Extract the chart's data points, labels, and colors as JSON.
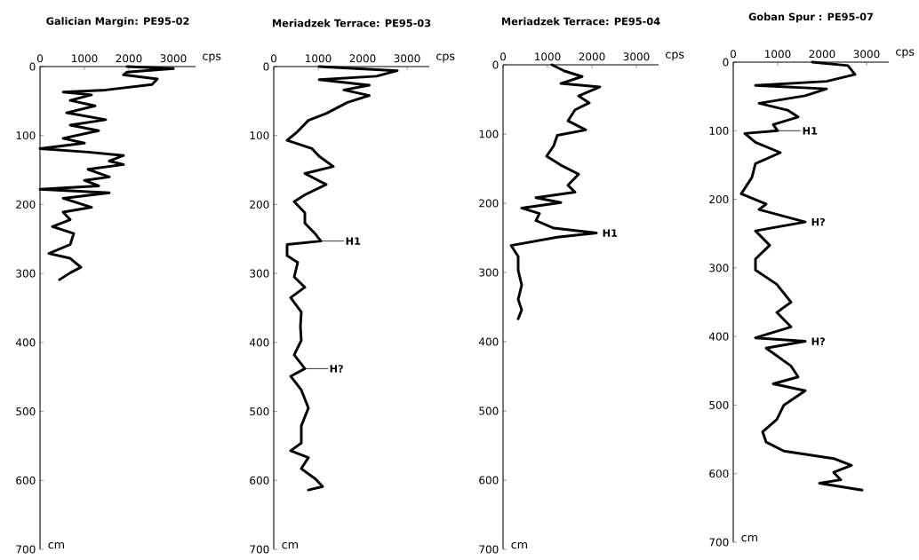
{
  "chart_data": [
    {
      "type": "line",
      "title": "Galician Margin: PE95-02",
      "xlabel": "cps",
      "ylabel": "cm",
      "color": "#000000",
      "xlim": [
        0,
        3500
      ],
      "ylim": [
        700,
        0
      ],
      "xticks": [
        0,
        1000,
        2000,
        3000
      ],
      "yticks": [
        0,
        100,
        200,
        300,
        400,
        500,
        600,
        700
      ],
      "x": [
        1960,
        3000,
        1960,
        1880,
        2640,
        2520,
        1480,
        520,
        1160,
        680,
        1240,
        600,
        1480,
        680,
        1320,
        520,
        1000,
        0,
        1080,
        1880,
        1560,
        1880,
        1080,
        1560,
        1000,
        1320,
        0,
        1560,
        520,
        1160,
        520,
        680,
        280,
        760,
        680,
        200,
        680,
        920,
        680,
        440
      ],
      "values": [
        0,
        3,
        8,
        12,
        18,
        26,
        34,
        37,
        41,
        49,
        57,
        67,
        77,
        85,
        93,
        104,
        111,
        119,
        124,
        129,
        137,
        142,
        149,
        160,
        165,
        173,
        178,
        183,
        191,
        204,
        211,
        222,
        232,
        242,
        258,
        271,
        278,
        291,
        299,
        309
      ]
    },
    {
      "type": "line",
      "title": "Meriadzek Terrace: PE95-03",
      "xlabel": "cps",
      "ylabel": "cm",
      "color": "#000000",
      "xlim": [
        0,
        3500
      ],
      "ylim": [
        700,
        0
      ],
      "xticks": [
        0,
        1000,
        2000,
        3000
      ],
      "yticks": [
        0,
        100,
        200,
        300,
        400,
        500,
        600,
        700
      ],
      "x": [
        1020,
        2780,
        2310,
        1020,
        2150,
        1580,
        2150,
        1660,
        1180,
        780,
        540,
        300,
        860,
        1020,
        1340,
        700,
        1180,
        700,
        460,
        700,
        700,
        940,
        1060,
        300,
        300,
        540,
        460,
        700,
        380,
        620,
        600,
        620,
        460,
        700,
        380,
        620,
        780,
        620,
        620,
        380,
        780,
        620,
        940,
        1100,
        780
      ],
      "values": [
        0,
        6,
        14,
        19,
        27,
        34,
        42,
        52,
        68,
        78,
        94,
        107,
        119,
        130,
        145,
        155,
        171,
        186,
        196,
        212,
        227,
        243,
        253,
        258,
        274,
        284,
        305,
        320,
        335,
        356,
        377,
        397,
        418,
        438,
        449,
        469,
        495,
        521,
        546,
        557,
        567,
        583,
        598,
        609,
        614
      ],
      "annotations": [
        {
          "text": "H1",
          "x": 1060,
          "y": 253
        },
        {
          "text": "H?",
          "x": 700,
          "y": 438
        }
      ]
    },
    {
      "type": "line",
      "title": "Meriadzek Terrace: PE95-04",
      "xlabel": "cps",
      "ylabel": "cm",
      "color": "#000000",
      "xlim": [
        0,
        3500
      ],
      "ylim": [
        700,
        0
      ],
      "xticks": [
        0,
        1000,
        2000,
        3000
      ],
      "yticks": [
        0,
        100,
        200,
        300,
        400,
        500,
        600,
        700
      ],
      "x": [
        1100,
        1380,
        1780,
        1300,
        2180,
        1700,
        1940,
        1620,
        1460,
        1860,
        1220,
        1140,
        980,
        1300,
        1700,
        1460,
        1620,
        740,
        1300,
        420,
        820,
        740,
        1140,
        2100,
        1220,
        180,
        340,
        340,
        420,
        340,
        420,
        340
      ],
      "values": [
        0,
        9,
        17,
        27,
        32,
        45,
        55,
        65,
        81,
        94,
        102,
        117,
        132,
        145,
        158,
        174,
        184,
        192,
        199,
        207,
        215,
        225,
        236,
        243,
        249,
        261,
        277,
        297,
        318,
        339,
        354,
        367
      ],
      "annotations": [
        {
          "text": "H1",
          "x": 2100,
          "y": 243
        }
      ]
    },
    {
      "type": "line",
      "title": "Goban Spur : PE95-07",
      "xlabel": "cps",
      "ylabel": "cm",
      "color": "#000000",
      "xlim": [
        0,
        3500
      ],
      "ylim": [
        700,
        0
      ],
      "xticks": [
        0,
        1000,
        2000,
        3000
      ],
      "yticks": [
        0,
        100,
        200,
        300,
        400,
        500,
        600,
        700
      ],
      "x": [
        1780,
        2580,
        2740,
        2100,
        500,
        2100,
        1620,
        580,
        1220,
        1460,
        900,
        1000,
        260,
        500,
        1060,
        500,
        420,
        180,
        740,
        580,
        1620,
        500,
        820,
        500,
        500,
        980,
        1300,
        980,
        1300,
        500,
        1620,
        740,
        1300,
        1460,
        900,
        1620,
        1140,
        980,
        660,
        740,
        1140,
        2260,
        2660,
        2260,
        2420,
        1940,
        2900
      ],
      "values": [
        0,
        5,
        18,
        28,
        34,
        39,
        49,
        60,
        70,
        80,
        91,
        100,
        104,
        117,
        132,
        148,
        168,
        192,
        207,
        215,
        233,
        246,
        267,
        287,
        303,
        324,
        350,
        365,
        386,
        402,
        407,
        417,
        443,
        459,
        469,
        479,
        500,
        521,
        539,
        554,
        567,
        578,
        588,
        598,
        609,
        614,
        624
      ],
      "annotations": [
        {
          "text": "H1",
          "x": 1000,
          "y": 100
        },
        {
          "text": "H?",
          "x": 1620,
          "y": 233
        },
        {
          "text": "H?",
          "x": 1620,
          "y": 407
        }
      ]
    }
  ]
}
